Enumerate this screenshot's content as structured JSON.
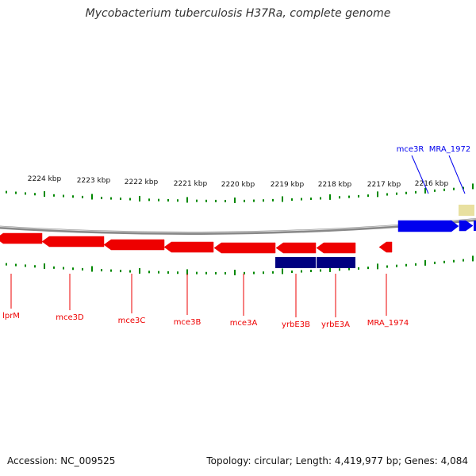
{
  "title": "Mycobacterium tuberculosis H37Ra, complete genome",
  "footer": {
    "accession": "Accession: NC_009525",
    "summary": "Topology: circular; Length: 4,419,977 bp; Genes: 4,084"
  },
  "colors": {
    "forward_gene": "#0000ee",
    "reverse_gene": "#ee0000",
    "rna_feature": "#000080",
    "misc_feature": "#e8e0a0",
    "ticks": "#008800",
    "backbone": "#888888"
  },
  "tick_labels": [
    "2224 kbp",
    "2223 kbp",
    "2222 kbp",
    "2221 kbp",
    "2220 kbp",
    "2219 kbp",
    "2218 kbp",
    "2217 kbp",
    "2216 kbp"
  ],
  "forward_genes": [
    {
      "name": "mce3R"
    },
    {
      "name": "MRA_1972"
    }
  ],
  "reverse_genes": [
    {
      "name": "lprM"
    },
    {
      "name": "mce3D"
    },
    {
      "name": "mce3C"
    },
    {
      "name": "mce3B"
    },
    {
      "name": "mce3A"
    },
    {
      "name": "yrbE3B"
    },
    {
      "name": "yrbE3A"
    },
    {
      "name": "MRA_1974"
    }
  ]
}
